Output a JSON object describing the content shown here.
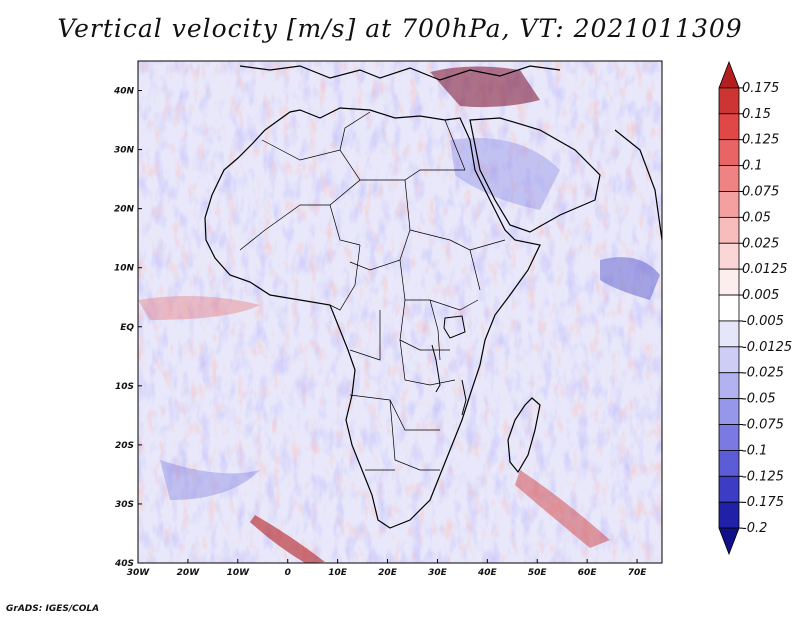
{
  "title": "Vertical velocity [m/s] at 700hPa, VT: 2021011309",
  "credit": "GrADS: IGES/COLA",
  "map": {
    "x_ticks": [
      "30W",
      "20W",
      "10W",
      "0",
      "10E",
      "20E",
      "30E",
      "40E",
      "50E",
      "60E",
      "70E"
    ],
    "y_ticks": [
      "40N",
      "30N",
      "20N",
      "10N",
      "EQ",
      "10S",
      "20S",
      "30S",
      "40S"
    ],
    "lon_range": [
      -30,
      75
    ],
    "lat_range": [
      -40,
      45
    ],
    "background": "#e8e8fa"
  },
  "colorbar": {
    "levels": [
      "0.175",
      "0.15",
      "0.125",
      "0.1",
      "0.075",
      "0.05",
      "0.025",
      "0.0125",
      "0.005",
      "-0.005",
      "-0.0125",
      "-0.025",
      "-0.05",
      "-0.075",
      "-0.1",
      "-0.125",
      "-0.175",
      "-0.2"
    ],
    "colors": [
      "#b41e1e",
      "#cd3434",
      "#e04848",
      "#e96464",
      "#ef8282",
      "#f4a0a0",
      "#f7bcbc",
      "#fad6d6",
      "#fdeeee",
      "#ffffff",
      "#e6e6fb",
      "#cdcdf6",
      "#b2b2f0",
      "#9696ea",
      "#7a7ae2",
      "#5c5cd6",
      "#3c3cc4",
      "#2020a8",
      "#10108a"
    ]
  }
}
